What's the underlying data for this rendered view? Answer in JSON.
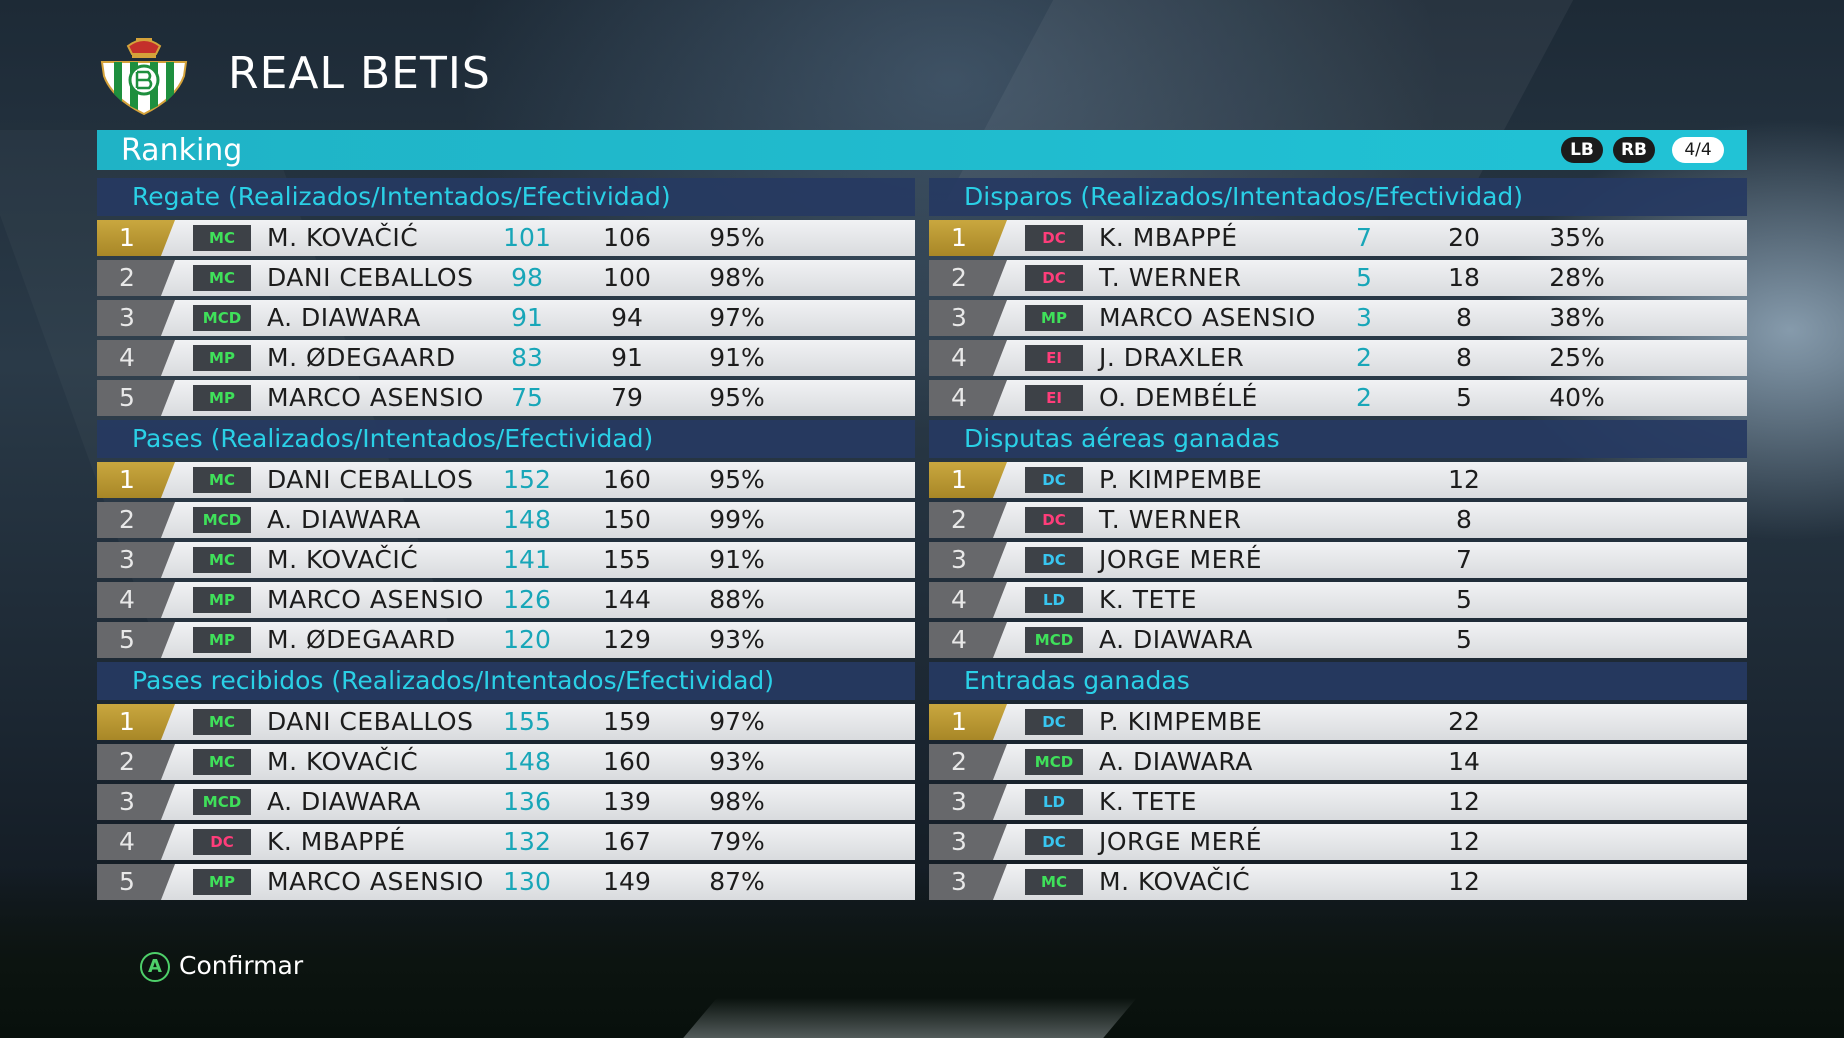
{
  "header": {
    "team_name": "REAL BETIS"
  },
  "ranking_bar": {
    "title": "Ranking",
    "lb_label": "LB",
    "rb_label": "RB",
    "page": "4/4"
  },
  "colors": {
    "accent": "#21c3d6",
    "gold": "#c9a73f",
    "pos_green": "#3fe05a",
    "pos_pink": "#ff3d7a",
    "pos_blue": "#38c6f0"
  },
  "sections": {
    "regate": {
      "title": "Regate (Realizados/Intentados/Efectividad)",
      "rows": [
        {
          "rank": "1",
          "pos": "MC",
          "pos_color": "green",
          "name": "M. KOVAČIĆ",
          "v1": "101",
          "v2": "106",
          "v3": "95%"
        },
        {
          "rank": "2",
          "pos": "MC",
          "pos_color": "green",
          "name": "DANI CEBALLOS",
          "v1": "98",
          "v2": "100",
          "v3": "98%"
        },
        {
          "rank": "3",
          "pos": "MCD",
          "pos_color": "green",
          "name": "A. DIAWARA",
          "v1": "91",
          "v2": "94",
          "v3": "97%"
        },
        {
          "rank": "4",
          "pos": "MP",
          "pos_color": "green",
          "name": "M. ØDEGAARD",
          "v1": "83",
          "v2": "91",
          "v3": "91%"
        },
        {
          "rank": "5",
          "pos": "MP",
          "pos_color": "green",
          "name": "MARCO ASENSIO",
          "v1": "75",
          "v2": "79",
          "v3": "95%"
        }
      ]
    },
    "pases": {
      "title": "Pases (Realizados/Intentados/Efectividad)",
      "rows": [
        {
          "rank": "1",
          "pos": "MC",
          "pos_color": "green",
          "name": "DANI CEBALLOS",
          "v1": "152",
          "v2": "160",
          "v3": "95%"
        },
        {
          "rank": "2",
          "pos": "MCD",
          "pos_color": "green",
          "name": "A. DIAWARA",
          "v1": "148",
          "v2": "150",
          "v3": "99%"
        },
        {
          "rank": "3",
          "pos": "MC",
          "pos_color": "green",
          "name": "M. KOVAČIĆ",
          "v1": "141",
          "v2": "155",
          "v3": "91%"
        },
        {
          "rank": "4",
          "pos": "MP",
          "pos_color": "green",
          "name": "MARCO ASENSIO",
          "v1": "126",
          "v2": "144",
          "v3": "88%"
        },
        {
          "rank": "5",
          "pos": "MP",
          "pos_color": "green",
          "name": "M. ØDEGAARD",
          "v1": "120",
          "v2": "129",
          "v3": "93%"
        }
      ]
    },
    "pases_recibidos": {
      "title": "Pases recibidos (Realizados/Intentados/Efectividad)",
      "rows": [
        {
          "rank": "1",
          "pos": "MC",
          "pos_color": "green",
          "name": "DANI CEBALLOS",
          "v1": "155",
          "v2": "159",
          "v3": "97%"
        },
        {
          "rank": "2",
          "pos": "MC",
          "pos_color": "green",
          "name": "M. KOVAČIĆ",
          "v1": "148",
          "v2": "160",
          "v3": "93%"
        },
        {
          "rank": "3",
          "pos": "MCD",
          "pos_color": "green",
          "name": "A. DIAWARA",
          "v1": "136",
          "v2": "139",
          "v3": "98%"
        },
        {
          "rank": "4",
          "pos": "DC",
          "pos_color": "pink",
          "name": "K. MBAPPÉ",
          "v1": "132",
          "v2": "167",
          "v3": "79%"
        },
        {
          "rank": "5",
          "pos": "MP",
          "pos_color": "green",
          "name": "MARCO ASENSIO",
          "v1": "130",
          "v2": "149",
          "v3": "87%"
        }
      ]
    },
    "disparos": {
      "title": "Disparos (Realizados/Intentados/Efectividad)",
      "rows": [
        {
          "rank": "1",
          "pos": "DC",
          "pos_color": "pink",
          "name": "K. MBAPPÉ",
          "v1": "7",
          "v2": "20",
          "v3": "35%"
        },
        {
          "rank": "2",
          "pos": "DC",
          "pos_color": "pink",
          "name": "T. WERNER",
          "v1": "5",
          "v2": "18",
          "v3": "28%"
        },
        {
          "rank": "3",
          "pos": "MP",
          "pos_color": "green",
          "name": "MARCO ASENSIO",
          "v1": "3",
          "v2": "8",
          "v3": "38%"
        },
        {
          "rank": "4",
          "pos": "EI",
          "pos_color": "pink",
          "name": "J. DRAXLER",
          "v1": "2",
          "v2": "8",
          "v3": "25%"
        },
        {
          "rank": "4",
          "pos": "EI",
          "pos_color": "pink",
          "name": "O. DEMBÉLÉ",
          "v1": "2",
          "v2": "5",
          "v3": "40%"
        }
      ]
    },
    "disputas": {
      "title": "Disputas aéreas ganadas",
      "rows": [
        {
          "rank": "1",
          "pos": "DC",
          "pos_color": "blue",
          "name": "P. KIMPEMBE",
          "value": "12"
        },
        {
          "rank": "2",
          "pos": "DC",
          "pos_color": "pink",
          "name": "T. WERNER",
          "value": "8"
        },
        {
          "rank": "3",
          "pos": "DC",
          "pos_color": "blue",
          "name": "JORGE MERÉ",
          "value": "7"
        },
        {
          "rank": "4",
          "pos": "LD",
          "pos_color": "blue",
          "name": "K. TETE",
          "value": "5"
        },
        {
          "rank": "4",
          "pos": "MCD",
          "pos_color": "green",
          "name": "A. DIAWARA",
          "value": "5"
        }
      ]
    },
    "entradas": {
      "title": "Entradas ganadas",
      "rows": [
        {
          "rank": "1",
          "pos": "DC",
          "pos_color": "blue",
          "name": "P. KIMPEMBE",
          "value": "22"
        },
        {
          "rank": "2",
          "pos": "MCD",
          "pos_color": "green",
          "name": "A. DIAWARA",
          "value": "14"
        },
        {
          "rank": "3",
          "pos": "LD",
          "pos_color": "blue",
          "name": "K. TETE",
          "value": "12"
        },
        {
          "rank": "3",
          "pos": "DC",
          "pos_color": "blue",
          "name": "JORGE MERÉ",
          "value": "12"
        },
        {
          "rank": "3",
          "pos": "MC",
          "pos_color": "green",
          "name": "M. KOVAČIĆ",
          "value": "12"
        }
      ]
    }
  },
  "footer": {
    "button": "A",
    "label": "Confirmar"
  }
}
